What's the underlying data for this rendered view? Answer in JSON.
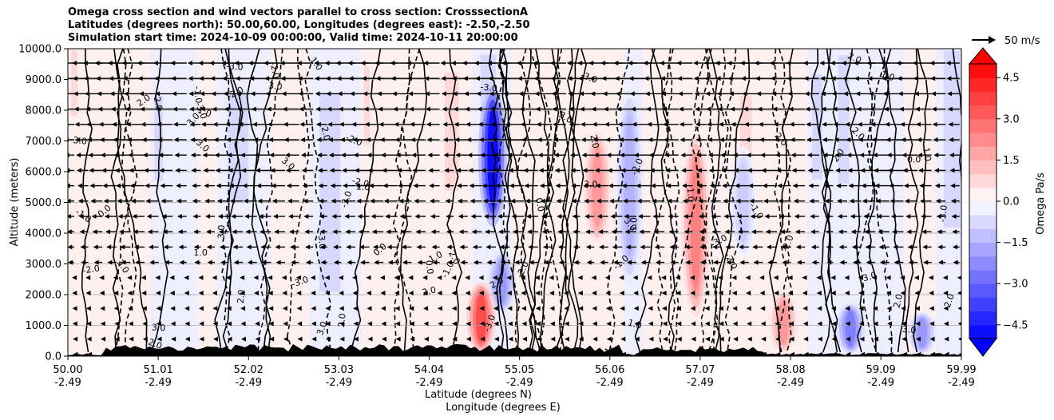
{
  "chart_data": {
    "type": "heatmap",
    "title_lines": [
      "Omega cross section and wind vectors parallel to cross section: CrosssectionA",
      "Latitudes (degrees north): 50.00,60.00, Longitudes (degrees east): -2.50,-2.50",
      "Simulation start time: 2024-10-09 00:00:00, Valid time: 2024-10-11 20:00:00"
    ],
    "ylabel": "Altitude (meters)",
    "xlabel_lines": [
      "Latitude (degrees N)",
      "Longitude (degrees E)"
    ],
    "ylim": [
      0,
      10000
    ],
    "xlim": [
      50.0,
      59.99
    ],
    "y_ticks": [
      "0.0",
      "1000.0",
      "2000.0",
      "3000.0",
      "4000.0",
      "5000.0",
      "6000.0",
      "7000.0",
      "8000.0",
      "9000.0",
      "10000.0"
    ],
    "y_tick_values": [
      0,
      1000,
      2000,
      3000,
      4000,
      5000,
      6000,
      7000,
      8000,
      9000,
      10000
    ],
    "x_ticks": [
      {
        "value": 50.0,
        "lat": "50.00",
        "lon": "-2.49"
      },
      {
        "value": 51.01,
        "lat": "51.01",
        "lon": "-2.49"
      },
      {
        "value": 52.02,
        "lat": "52.02",
        "lon": "-2.49"
      },
      {
        "value": 53.03,
        "lat": "53.03",
        "lon": "-2.49"
      },
      {
        "value": 54.04,
        "lat": "54.04",
        "lon": "-2.49"
      },
      {
        "value": 55.05,
        "lat": "55.05",
        "lon": "-2.49"
      },
      {
        "value": 56.06,
        "lat": "56.06",
        "lon": "-2.49"
      },
      {
        "value": 57.07,
        "lat": "57.07",
        "lon": "-2.49"
      },
      {
        "value": 58.08,
        "lat": "58.08",
        "lon": "-2.49"
      },
      {
        "value": 59.09,
        "lat": "59.09",
        "lon": "-2.49"
      },
      {
        "value": 59.99,
        "lat": "59.99",
        "lon": "-2.49"
      }
    ],
    "colorbar": {
      "label": "Omega Pa/s",
      "min": -5.0,
      "max": 5.0,
      "ticks": [
        "4.5",
        "3.0",
        "1.5",
        "0.0",
        "−1.5",
        "−3.0",
        "−4.5"
      ],
      "tick_values": [
        4.5,
        3.0,
        1.5,
        0.0,
        -1.5,
        -3.0,
        -4.5
      ]
    },
    "quiver_key": "50 m/s",
    "contour_labels": [
      "0.0",
      "1.0",
      "-1.0",
      "2.0",
      "-2.0",
      "3.0",
      "-3.0"
    ],
    "omega_features": [
      {
        "lat": 54.75,
        "alt_min": 4000,
        "alt_max": 9000,
        "value": -4.8
      },
      {
        "lat": 54.85,
        "alt_min": 1300,
        "alt_max": 3500,
        "value": -2.0
      },
      {
        "lat": 54.62,
        "alt_min": 0,
        "alt_max": 2500,
        "value": 3.5
      },
      {
        "lat": 55.92,
        "alt_min": 3500,
        "alt_max": 7500,
        "value": 2.0
      },
      {
        "lat": 56.28,
        "alt_min": 2000,
        "alt_max": 9000,
        "value": -1.5
      },
      {
        "lat": 57.02,
        "alt_min": 1000,
        "alt_max": 7500,
        "value": 2.5
      },
      {
        "lat": 57.55,
        "alt_min": 3000,
        "alt_max": 7000,
        "value": -1.0
      },
      {
        "lat": 58.0,
        "alt_min": 0,
        "alt_max": 2200,
        "value": 2.0
      },
      {
        "lat": 58.75,
        "alt_min": 0,
        "alt_max": 1800,
        "value": -2.5
      },
      {
        "lat": 59.55,
        "alt_min": 0,
        "alt_max": 1500,
        "value": -2.0
      }
    ],
    "colors": {
      "negative": "#0000ff",
      "positive": "#ff0000",
      "terrain": "#000000"
    }
  }
}
